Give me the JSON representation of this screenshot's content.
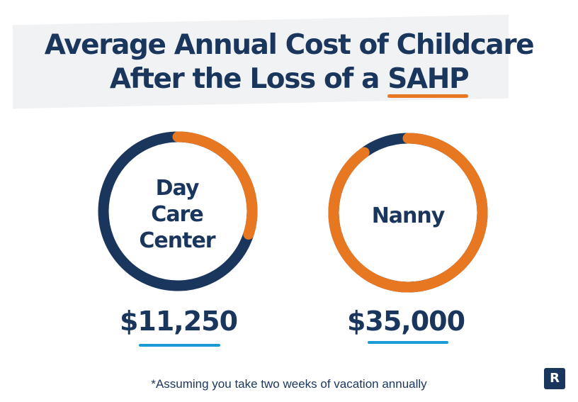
{
  "title": {
    "line1": "Average Annual Cost of Childcare",
    "line2_prefix": "After the Loss of a ",
    "line2_highlight": "SAHP"
  },
  "colors": {
    "navy": "#1b365d",
    "orange": "#e87722",
    "blue": "#1a9bd7",
    "background": "#ffffff"
  },
  "chart_data": {
    "type": "pie",
    "items": [
      {
        "label_lines": [
          "Day",
          "Care",
          "Center"
        ],
        "value": 11250,
        "value_label": "$11,250",
        "orange_fraction": 0.3
      },
      {
        "label_lines": [
          "Nanny"
        ],
        "value": 35000,
        "value_label": "$35,000",
        "orange_fraction": 0.9
      }
    ]
  },
  "footnote": "*Assuming you take two weeks of vacation annually",
  "logo": {
    "letter": "R"
  }
}
